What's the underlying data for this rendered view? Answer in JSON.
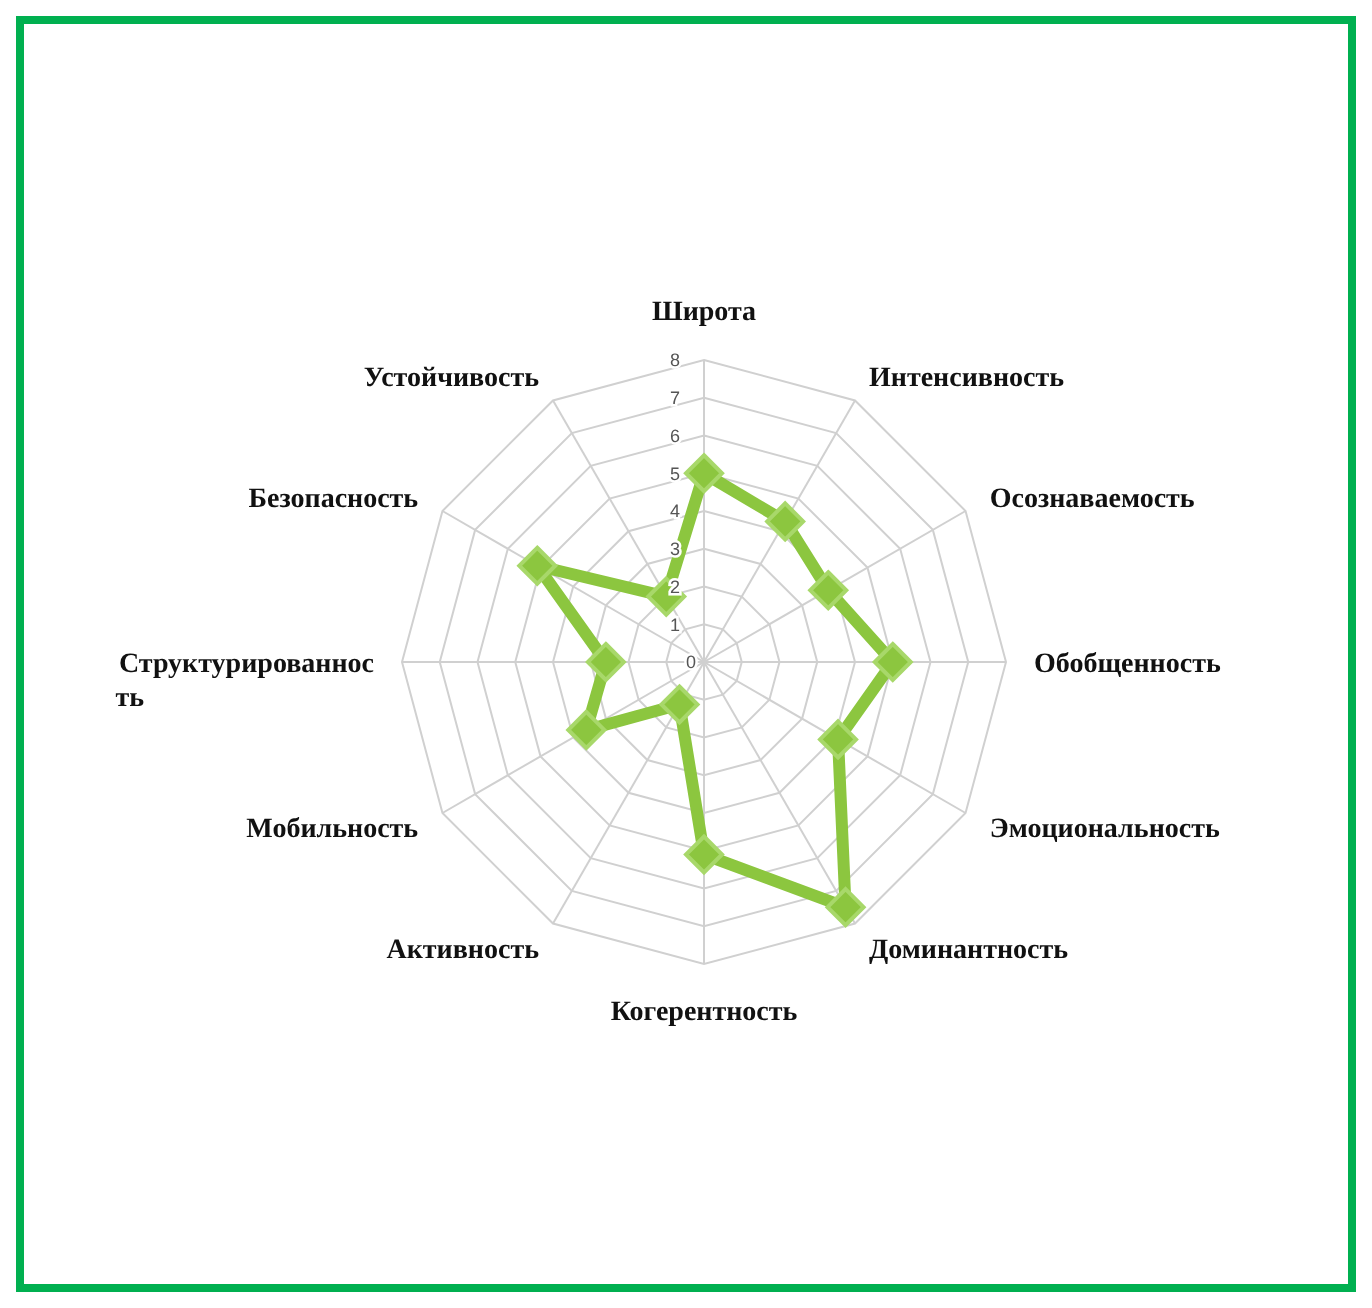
{
  "chart_data": {
    "type": "radar",
    "categories": [
      "Широта",
      "Интенсивность",
      "Осознаваемость",
      "Обобщенность",
      "Эмоциональность",
      "Доминантность",
      "Когерентность",
      "Активность",
      "Мобильность",
      "Структурированность",
      "Безопасность",
      "Устойчивость"
    ],
    "series": [
      {
        "color": "#8cc63f",
        "values": [
          5,
          4.3,
          3.8,
          5,
          4.1,
          7.5,
          5.1,
          1.3,
          3.6,
          2.6,
          5.1,
          2
        ]
      }
    ],
    "ylim": [
      0,
      8
    ],
    "yticks": [
      0,
      1,
      2,
      3,
      4,
      5,
      6,
      7,
      8
    ],
    "grid": true,
    "marker": "diamond",
    "line_style": "solid"
  }
}
